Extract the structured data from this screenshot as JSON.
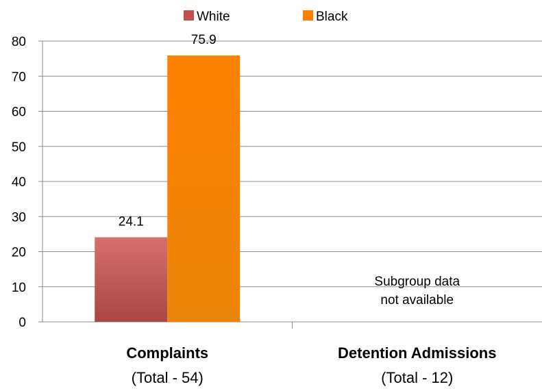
{
  "chart_data": {
    "type": "bar",
    "categories": [
      "Complaints",
      "Detention Admissions"
    ],
    "category_subtitles": [
      "(Total - 54)",
      "(Total - 12)"
    ],
    "series": [
      {
        "name": "White",
        "values": [
          24.1,
          null
        ],
        "color": "#c0504d"
      },
      {
        "name": "Black",
        "values": [
          75.9,
          null
        ],
        "color": "#ff8000"
      }
    ],
    "ylim": [
      0,
      80
    ],
    "yticks": [
      0,
      10,
      20,
      30,
      40,
      50,
      60,
      70,
      80
    ],
    "grid": true,
    "legend_position": "top",
    "annotations": [
      {
        "category": "Detention Admissions",
        "lines": [
          "Subgroup data",
          "not available"
        ]
      }
    ]
  }
}
